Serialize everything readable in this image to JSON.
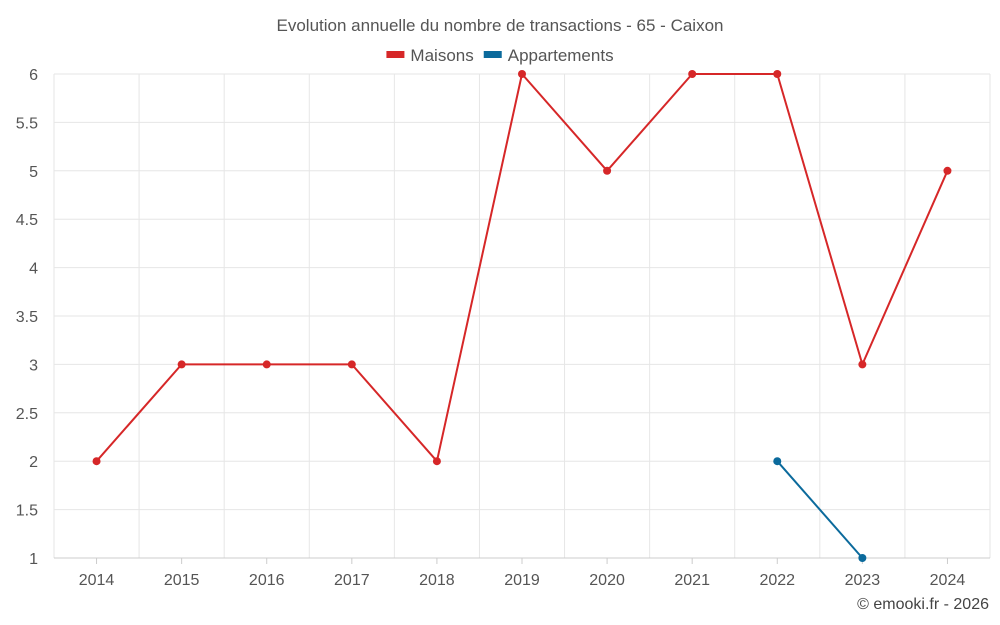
{
  "chart_data": {
    "type": "line",
    "title": "Evolution annuelle du nombre de transactions - 65 - Caixon",
    "categories": [
      "2014",
      "2015",
      "2016",
      "2017",
      "2018",
      "2019",
      "2020",
      "2021",
      "2022",
      "2023",
      "2024"
    ],
    "series": [
      {
        "name": "Maisons",
        "color": "#d62728",
        "values": [
          2,
          3,
          3,
          3,
          2,
          6,
          5,
          6,
          6,
          3,
          5
        ]
      },
      {
        "name": "Appartements",
        "color": "#0b6a9c",
        "values": [
          null,
          null,
          null,
          null,
          null,
          null,
          null,
          null,
          2,
          1,
          null
        ]
      }
    ],
    "ylim": [
      1,
      6
    ],
    "yticks": [
      "1",
      "1.5",
      "2",
      "2.5",
      "3",
      "3.5",
      "4",
      "4.5",
      "5",
      "5.5",
      "6"
    ],
    "grid": true,
    "legend_position": "top-center",
    "credit": "© emooki.fr - 2026"
  }
}
